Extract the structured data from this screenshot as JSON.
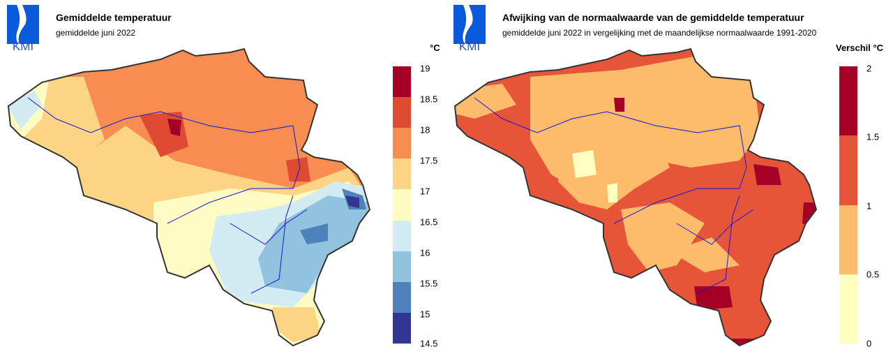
{
  "left": {
    "logo_text": "KMI",
    "title": "Gemiddelde temperatuur",
    "subtitle": "gemiddelde juni 2022",
    "unit": "°C",
    "legend": {
      "ticks": [
        "19",
        "18.5",
        "18",
        "17.5",
        "17",
        "16.5",
        "16",
        "15.5",
        "15",
        "14.5"
      ],
      "colors": [
        "#a50026",
        "#df4a33",
        "#f88d52",
        "#fdd384",
        "#fffcc3",
        "#d3ebf2",
        "#91c3de",
        "#4f82bb",
        "#333793"
      ]
    }
  },
  "right": {
    "logo_text": "KMI",
    "title": "Afwijking van de normaalwaarde van de gemiddelde temperatuur",
    "subtitle": "gemiddelde juni 2022 in vergelijking met de maandelijkse normaalwaarde 1991-2020",
    "unit": "Verschil °C",
    "legend": {
      "ticks": [
        "2",
        "1.5",
        "1",
        "0.5",
        "0"
      ],
      "colors": [
        "#a50026",
        "#e65538",
        "#fdbb6c",
        "#ffffc0"
      ]
    }
  }
}
